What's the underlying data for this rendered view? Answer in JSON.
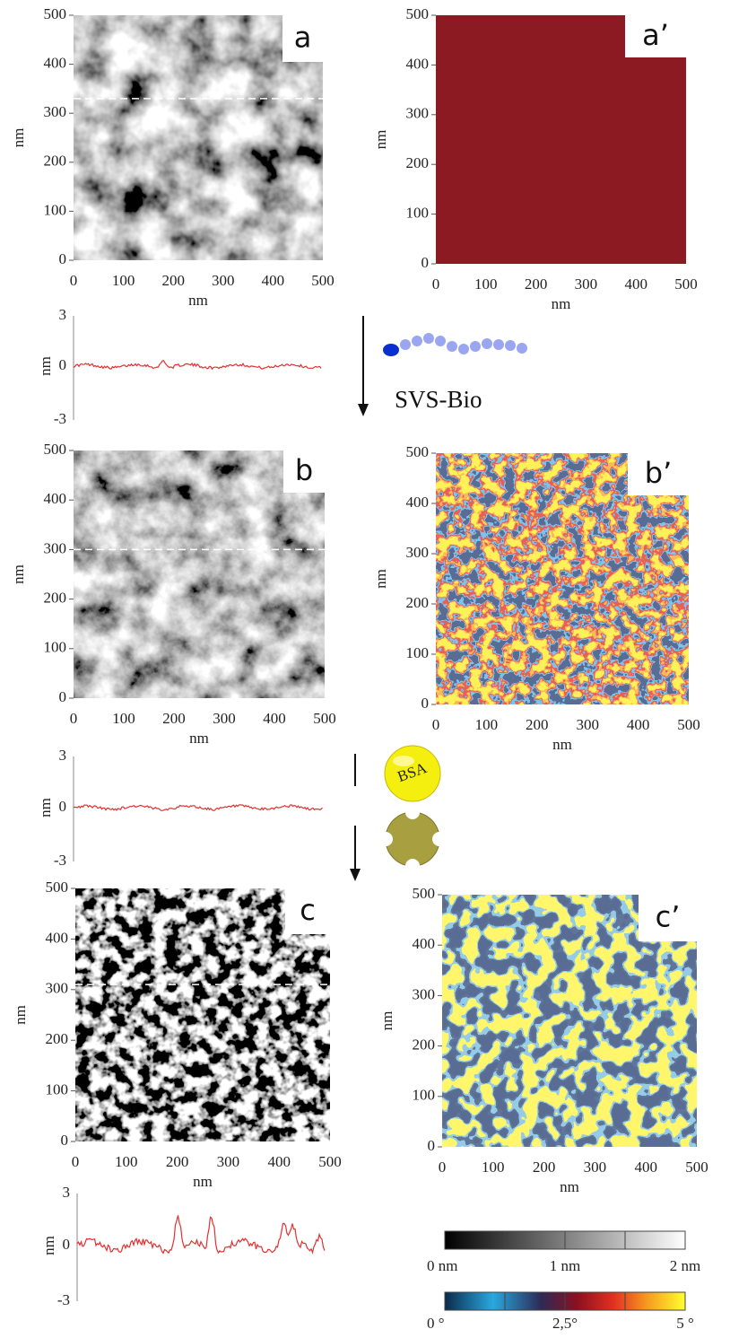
{
  "panels": [
    {
      "label": "a",
      "x_label": "nm",
      "y_label": "nm",
      "xticks": [
        "0",
        "100",
        "200",
        "300",
        "400",
        "500"
      ],
      "yticks": [
        "0",
        "100",
        "200",
        "300",
        "400",
        "500"
      ]
    },
    {
      "label": "a’",
      "x_label": "nm",
      "y_label": "nm",
      "xticks": [
        "0",
        "100",
        "200",
        "300",
        "400",
        "500"
      ],
      "yticks": [
        "0",
        "100",
        "200",
        "300",
        "400",
        "500"
      ]
    },
    {
      "label": "b",
      "x_label": "nm",
      "y_label": "nm",
      "xticks": [
        "0",
        "100",
        "200",
        "300",
        "400",
        "500"
      ],
      "yticks": [
        "0",
        "100",
        "200",
        "300",
        "400",
        "500"
      ]
    },
    {
      "label": "b’",
      "x_label": "nm",
      "y_label": "nm",
      "xticks": [
        "0",
        "100",
        "200",
        "300",
        "400",
        "500"
      ],
      "yticks": [
        "0",
        "100",
        "200",
        "300",
        "400",
        "500"
      ]
    },
    {
      "label": "c",
      "x_label": "nm",
      "y_label": "nm",
      "xticks": [
        "0",
        "100",
        "200",
        "300",
        "400",
        "500"
      ],
      "yticks": [
        "0",
        "100",
        "200",
        "300",
        "400",
        "500"
      ]
    },
    {
      "label": "c’",
      "x_label": "nm",
      "y_label": "nm",
      "xticks": [
        "0",
        "100",
        "200",
        "300",
        "400",
        "500"
      ],
      "yticks": [
        "0",
        "100",
        "200",
        "300",
        "400",
        "500"
      ]
    }
  ],
  "profiles": [
    {
      "y_label": "nm",
      "yticks": [
        "3",
        "0",
        "-3"
      ]
    },
    {
      "y_label": "nm",
      "yticks": [
        "3",
        "0",
        "-3"
      ]
    },
    {
      "y_label": "nm",
      "yticks": [
        "3",
        "0",
        "-3"
      ]
    }
  ],
  "steps": [
    "SVS-Bio",
    "BSA"
  ],
  "colorbars": [
    {
      "labels": [
        "0 nm",
        "1  nm",
        "2 nm"
      ]
    },
    {
      "labels": [
        "0 °",
        "2,5°",
        "5 °"
      ]
    }
  ]
}
